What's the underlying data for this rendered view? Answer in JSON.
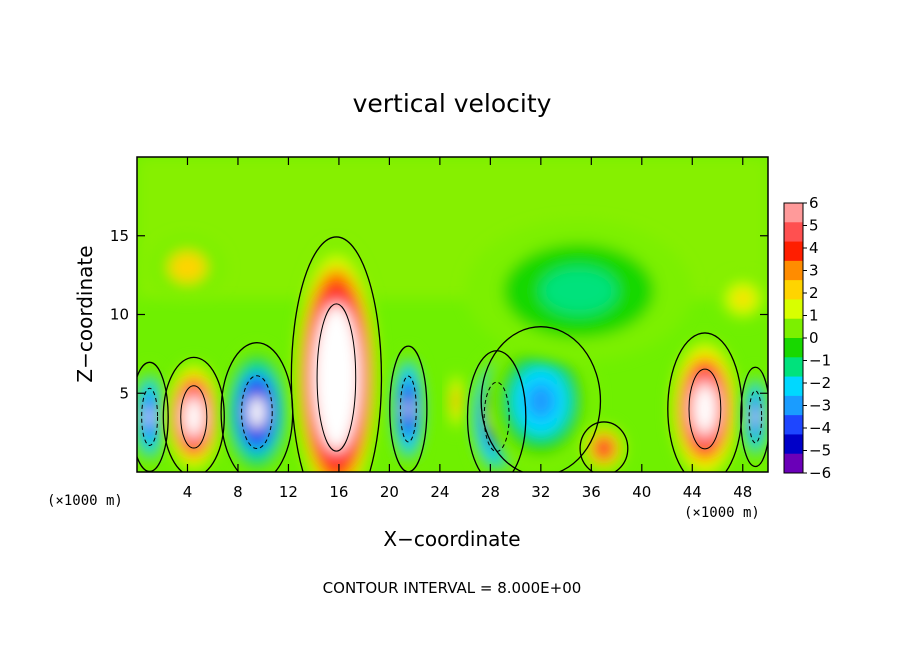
{
  "chart_data": {
    "type": "heatmap",
    "title": "vertical velocity",
    "xlabel": "X−coordinate",
    "ylabel": "Z−coordinate",
    "x_unit_left": "(×1000 m)",
    "x_unit_right": "(×1000 m)",
    "footer": "CONTOUR INTERVAL = 8.000E+00",
    "xlim": [
      0,
      50
    ],
    "ylim": [
      0,
      20
    ],
    "x_ticks": [
      4,
      8,
      12,
      16,
      20,
      24,
      28,
      32,
      36,
      40,
      44,
      48
    ],
    "x_tick_labels": [
      "4",
      "8",
      "12",
      "16",
      "20",
      "24",
      "28",
      "32",
      "36",
      "40",
      "44",
      "48"
    ],
    "y_ticks": [
      5,
      10,
      15
    ],
    "y_tick_labels": [
      "5",
      "10",
      "15"
    ],
    "colorbar": {
      "range": [
        -6,
        6
      ],
      "labels": [
        "6",
        "5",
        "4",
        "3",
        "2",
        "1",
        "0",
        "−1",
        "−2",
        "−3",
        "−4",
        "−5",
        "−6"
      ],
      "colors": [
        "#ff9a9a",
        "#ff5050",
        "#ff1e00",
        "#ff8c00",
        "#ffd400",
        "#d8ff00",
        "#7cf000",
        "#18d800",
        "#00e27c",
        "#00d8ff",
        "#1a9cff",
        "#1e46ff",
        "#0000c8",
        "#6a00b8"
      ]
    },
    "cells": [
      {
        "x": 1.0,
        "y": 3.5,
        "rx": 1.4,
        "ry": 3.3,
        "v": -6
      },
      {
        "x": 4.5,
        "y": 3.5,
        "rx": 2.3,
        "ry": 3.6,
        "v": 9
      },
      {
        "x": 9.5,
        "y": 3.8,
        "rx": 2.7,
        "ry": 4.2,
        "v": -8
      },
      {
        "x": 15.8,
        "y": 6.0,
        "rx": 3.4,
        "ry": 8.5,
        "v": 12
      },
      {
        "x": 21.5,
        "y": 4.0,
        "rx": 1.4,
        "ry": 3.8,
        "v": -7
      },
      {
        "x": 25.3,
        "y": 4.5,
        "rx": 0.7,
        "ry": 2.0,
        "v": 3
      },
      {
        "x": 28.5,
        "y": 3.5,
        "rx": 2.2,
        "ry": 4.0,
        "v": -7
      },
      {
        "x": 32.0,
        "y": 4.5,
        "rx": 4.5,
        "ry": 4.5,
        "v": -4
      },
      {
        "x": 37.0,
        "y": 1.5,
        "rx": 1.8,
        "ry": 1.6,
        "v": 5
      },
      {
        "x": 45.0,
        "y": 4.0,
        "rx": 2.8,
        "ry": 4.6,
        "v": 9
      },
      {
        "x": 49.0,
        "y": 3.5,
        "rx": 1.1,
        "ry": 3.0,
        "v": -6
      },
      {
        "x": 35.0,
        "y": 11.5,
        "rx": 9.0,
        "ry": 4.5,
        "v": -2
      },
      {
        "x": 48.0,
        "y": 11.0,
        "rx": 2.0,
        "ry": 1.5,
        "v": 2
      },
      {
        "x": 4.0,
        "y": 13.0,
        "rx": 3.0,
        "ry": 2.0,
        "v": 1.5
      }
    ]
  }
}
